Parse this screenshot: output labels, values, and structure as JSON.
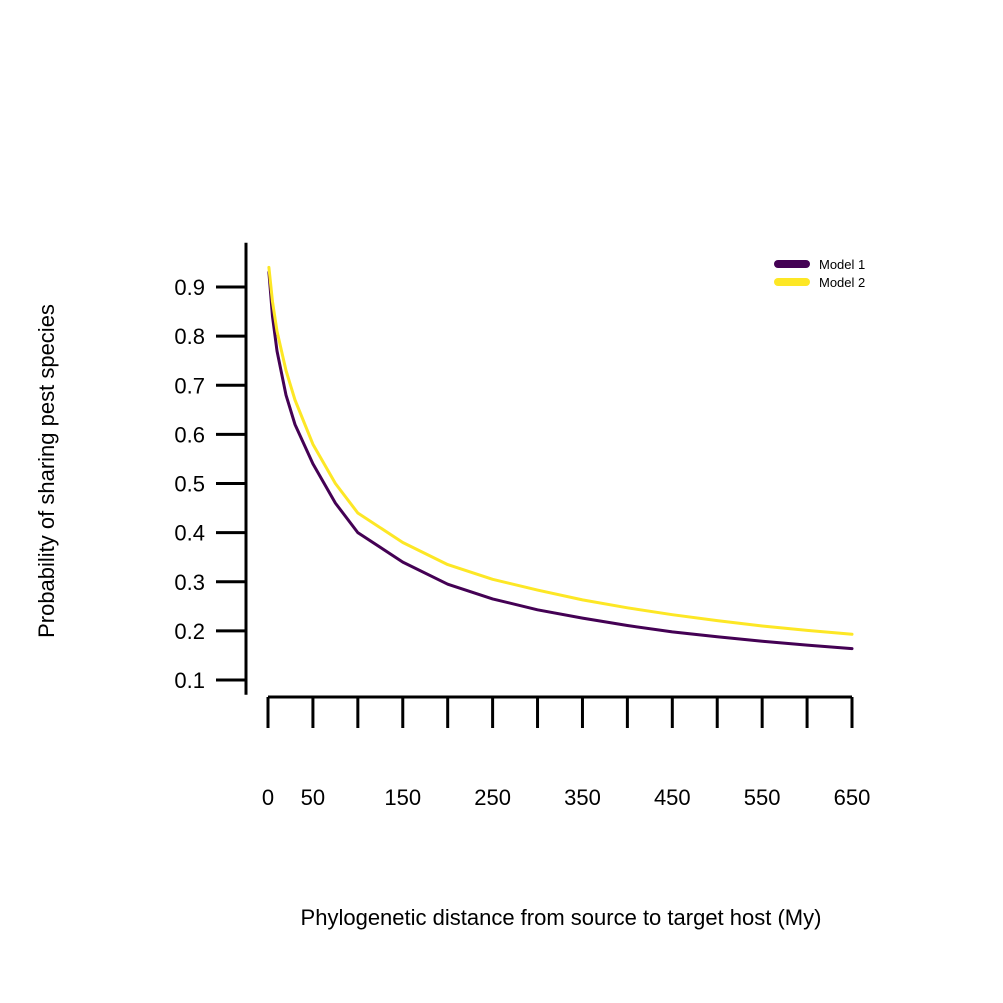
{
  "chart_data": {
    "type": "line",
    "title": "",
    "xlabel": "Phylogenetic distance from source to target host (My)",
    "ylabel": "Probability of sharing pest species",
    "xlim": [
      0,
      650
    ],
    "ylim": [
      0.07,
      0.99
    ],
    "x_ticks": [
      0,
      50,
      100,
      150,
      200,
      250,
      300,
      350,
      400,
      450,
      500,
      550,
      600,
      650
    ],
    "x_tick_labels": [
      "0",
      "50",
      "",
      "150",
      "",
      "250",
      "",
      "350",
      "",
      "450",
      "",
      "550",
      "",
      "650"
    ],
    "y_ticks": [
      0.1,
      0.2,
      0.3,
      0.4,
      0.5,
      0.6,
      0.7,
      0.8,
      0.9
    ],
    "y_tick_labels": [
      "0.1",
      "0.2",
      "0.3",
      "0.4",
      "0.5",
      "0.6",
      "0.7",
      "0.8",
      "0.9"
    ],
    "grid": false,
    "legend_position": "top-right",
    "series": [
      {
        "name": "Model 1",
        "color": "#440154",
        "x": [
          1,
          5,
          10,
          20,
          30,
          50,
          75,
          100,
          150,
          200,
          250,
          300,
          350,
          400,
          450,
          500,
          550,
          600,
          650
        ],
        "y": [
          0.93,
          0.84,
          0.77,
          0.68,
          0.62,
          0.54,
          0.46,
          0.4,
          0.34,
          0.295,
          0.265,
          0.243,
          0.226,
          0.211,
          0.198,
          0.188,
          0.179,
          0.171,
          0.164
        ]
      },
      {
        "name": "Model 2",
        "color": "#FDE725",
        "x": [
          1,
          5,
          10,
          20,
          30,
          50,
          75,
          100,
          150,
          200,
          250,
          300,
          350,
          400,
          450,
          500,
          550,
          600,
          650
        ],
        "y": [
          0.94,
          0.87,
          0.81,
          0.73,
          0.67,
          0.58,
          0.5,
          0.44,
          0.38,
          0.335,
          0.305,
          0.283,
          0.263,
          0.247,
          0.233,
          0.221,
          0.21,
          0.201,
          0.193
        ]
      }
    ]
  }
}
